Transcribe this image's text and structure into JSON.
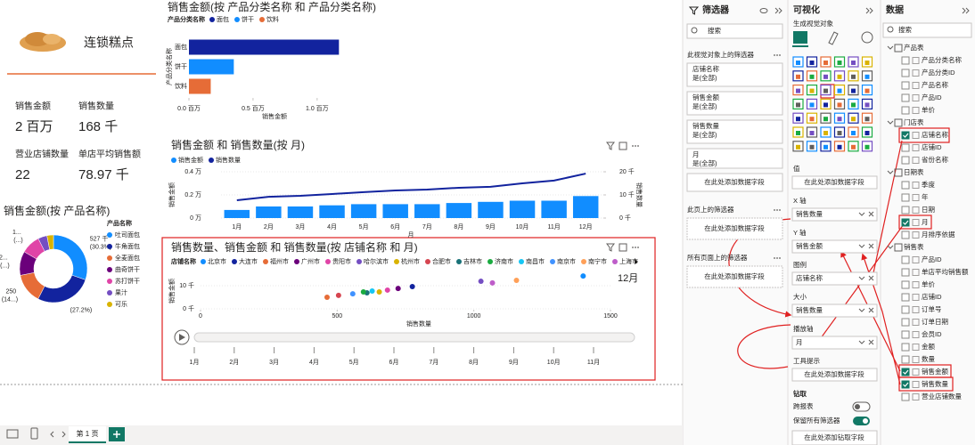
{
  "report": {
    "logo_title": "连锁糕点",
    "cards": [
      {
        "label": "销售金额",
        "value": "2 百万"
      },
      {
        "label": "销售数量",
        "value": "168 千"
      },
      {
        "label": "营业店铺数量",
        "value": "22"
      },
      {
        "label": "单店平均销售额",
        "value": "78.97 千"
      }
    ],
    "page_tab": "第 1 页"
  },
  "chart_data": [
    {
      "type": "bar",
      "orientation": "horizontal",
      "title": "销售金额(按 产品分类名称 和 产品分类名称)",
      "legend_title": "产品分类名称",
      "x_label": "销售金额",
      "y_label": "产品分类名称",
      "categories": [
        "面包",
        "饼干",
        "饮料"
      ],
      "values": [
        1170000,
        350000,
        170000
      ],
      "colors": [
        "#12239e",
        "#118dff",
        "#e66c37"
      ],
      "xlim": [
        0,
        1300000
      ],
      "xticks": [
        {
          "value": 0,
          "label": "0.0 百万"
        },
        {
          "value": 500000,
          "label": "0.5 百万"
        },
        {
          "value": 1000000,
          "label": "1.0 百万"
        }
      ]
    },
    {
      "type": "combo",
      "title": "销售金额 和 销售数量(按 月)",
      "x_label": "月",
      "y_label": "销售金额",
      "y2_label": "销售数量",
      "categories": [
        "1月",
        "2月",
        "3月",
        "4月",
        "5月",
        "6月",
        "7月",
        "8月",
        "9月",
        "10月",
        "11月",
        "12月"
      ],
      "series": [
        {
          "name": "销售金额",
          "type": "bar",
          "color": "#118dff",
          "values": [
            0.07,
            0.1,
            0.1,
            0.11,
            0.12,
            0.12,
            0.12,
            0.13,
            0.14,
            0.15,
            0.15,
            0.19
          ]
        },
        {
          "name": "销售数量",
          "type": "line",
          "axis": "y2",
          "color": "#12239e",
          "values": [
            7.7,
            9.2,
            9.6,
            10.4,
            11.2,
            11.9,
            12.3,
            13.1,
            13.5,
            15,
            16.2,
            19.2
          ]
        }
      ],
      "ylim": [
        0,
        0.4
      ],
      "yticks": [
        {
          "value": 0,
          "label": "0 万"
        },
        {
          "value": 0.2,
          "label": "0.2 万"
        },
        {
          "value": 0.4,
          "label": "0.4 万"
        }
      ],
      "y2lim": [
        0,
        20
      ],
      "y2ticks": [
        {
          "value": 0,
          "label": "0 千"
        },
        {
          "value": 10,
          "label": "10 千"
        },
        {
          "value": 20,
          "label": "20 千"
        }
      ],
      "grid": true
    },
    {
      "type": "scatter",
      "title": "销售数量、销售金额 和 销售数量(按 店铺名称 和 月)",
      "legend_title": "店铺名称",
      "x_label": "销售数量",
      "y_label": "销售金额",
      "play_label": "12月",
      "play_axis": [
        "1月",
        "2月",
        "3月",
        "4月",
        "5月",
        "6月",
        "7月",
        "8月",
        "9月",
        "10月",
        "11月"
      ],
      "series": [
        {
          "name": "北京市",
          "color": "#118dff",
          "x": [
            1400
          ],
          "values": [
            14.2
          ]
        },
        {
          "name": "大连市",
          "color": "#12239e",
          "x": [
            775
          ],
          "values": [
            9.6
          ]
        },
        {
          "name": "福州市",
          "color": "#e66c37",
          "x": [
            463
          ],
          "values": [
            5
          ]
        },
        {
          "name": "广州市",
          "color": "#6b007b",
          "x": [
            723
          ],
          "values": [
            8.8
          ]
        },
        {
          "name": "贵阳市",
          "color": "#e044a7",
          "x": [
            684
          ],
          "values": [
            8.1
          ]
        },
        {
          "name": "哈尔滨市",
          "color": "#744ec2",
          "x": [
            1026
          ],
          "values": [
            11.9
          ]
        },
        {
          "name": "杭州市",
          "color": "#d9b300",
          "x": [
            654
          ],
          "values": [
            7.3
          ]
        },
        {
          "name": "合肥市",
          "color": "#d64550",
          "x": [
            505
          ],
          "values": [
            5.8
          ]
        },
        {
          "name": "吉林市",
          "color": "#197278",
          "x": [
            609
          ],
          "values": [
            6.9
          ]
        },
        {
          "name": "济南市",
          "color": "#1aab40",
          "x": [
            596
          ],
          "values": [
            7.3
          ]
        },
        {
          "name": "南昌市",
          "color": "#15c6f4",
          "x": [
            628
          ],
          "values": [
            7.7
          ]
        },
        {
          "name": "南京市",
          "color": "#4092ff",
          "x": [
            557
          ],
          "values": [
            6.5
          ]
        },
        {
          "name": "南宁市",
          "color": "#ffa058",
          "x": [
            1156
          ],
          "values": [
            12.3
          ]
        },
        {
          "name": "上海市",
          "color": "#be5dc9",
          "x": [
            1068
          ],
          "values": [
            11.2
          ]
        }
      ],
      "xlim": [
        0,
        1500
      ],
      "xticks": [
        0,
        500,
        1000,
        1500
      ],
      "ylim": [
        0,
        15
      ],
      "yticks": [
        {
          "value": 0,
          "label": "0 千"
        },
        {
          "value": 10,
          "label": "10 千"
        }
      ]
    },
    {
      "type": "pie",
      "donut": true,
      "title": "销售金额(按 产品名称)",
      "legend_title": "产品名称",
      "categories": [
        "吐司面包",
        "牛角面包",
        "全麦面包",
        "曲奇饼干",
        "苏打饼干",
        "果汁",
        "可乐"
      ],
      "values": [
        527,
        473,
        250,
        200,
        160,
        75,
        54
      ],
      "value_labels": [
        "527 千 (30.3%)",
        "(27.2%)",
        "250 (14...)",
        "2... (...)",
        "1... (...)",
        null,
        null
      ],
      "colors": [
        "#118dff",
        "#12239e",
        "#e66c37",
        "#6b007b",
        "#e044a7",
        "#744ec2",
        "#d9b300"
      ]
    }
  ],
  "filters_pane": {
    "title": "筛选器",
    "search": "搜索",
    "sections": [
      {
        "title": "此视觉对象上的筛选器",
        "cards": [
          {
            "field": "店铺名称",
            "state": "是(全部)"
          },
          {
            "field": "销售金额",
            "state": "是(全部)"
          },
          {
            "field": "销售数量",
            "state": "是(全部)"
          },
          {
            "field": "月",
            "state": "是(全部)"
          }
        ],
        "add": "在此处添加数据字段"
      },
      {
        "title": "此页上的筛选器",
        "cards": [],
        "add": "在此处添加数据字段"
      },
      {
        "title": "所有页面上的筛选器",
        "cards": [],
        "add": "在此处添加数据字段"
      }
    ]
  },
  "visualizations_pane": {
    "title": "可视化",
    "subtitle": "生成视觉对象",
    "wells": [
      {
        "label": "值",
        "placeholder": "在此处添加数据字段"
      },
      {
        "label": "X 轴",
        "field": "销售数量"
      },
      {
        "label": "Y 轴",
        "field": "销售金额"
      },
      {
        "label": "图例",
        "field": "店铺名称"
      },
      {
        "label": "大小",
        "field": "销售数量"
      },
      {
        "label": "播放轴",
        "field": "月"
      },
      {
        "label": "工具提示",
        "placeholder": "在此处添加数据字段"
      }
    ],
    "drill": {
      "title": "钻取",
      "cross_report": "跨报表",
      "keep_filters": "保留所有筛选器",
      "placeholder": "在此处添加钻取字段"
    }
  },
  "data_pane": {
    "title": "数据",
    "search": "搜索",
    "tables": [
      {
        "name": "产品表",
        "fields": [
          {
            "name": "产品分类名称"
          },
          {
            "name": "产品分类ID"
          },
          {
            "name": "产品名称"
          },
          {
            "name": "产品ID"
          },
          {
            "name": "单价"
          }
        ]
      },
      {
        "name": "门店表",
        "fields": [
          {
            "name": "店铺名称",
            "checked": true
          },
          {
            "name": "店铺ID"
          },
          {
            "name": "省份名称"
          }
        ]
      },
      {
        "name": "日期表",
        "fields": [
          {
            "name": "季度"
          },
          {
            "name": "年"
          },
          {
            "name": "日期"
          },
          {
            "name": "月",
            "checked": true
          },
          {
            "name": "月排序依据"
          }
        ]
      },
      {
        "name": "销售表",
        "fields": [
          {
            "name": "产品ID"
          },
          {
            "name": "单店平均销售额"
          },
          {
            "name": "单价"
          },
          {
            "name": "店铺ID"
          },
          {
            "name": "订单号"
          },
          {
            "name": "订单日期"
          },
          {
            "name": "会员ID"
          },
          {
            "name": "金额"
          },
          {
            "name": "数量"
          },
          {
            "name": "销售金额",
            "checked": true
          },
          {
            "name": "销售数量",
            "checked": true
          },
          {
            "name": "营业店铺数量"
          }
        ]
      }
    ]
  }
}
